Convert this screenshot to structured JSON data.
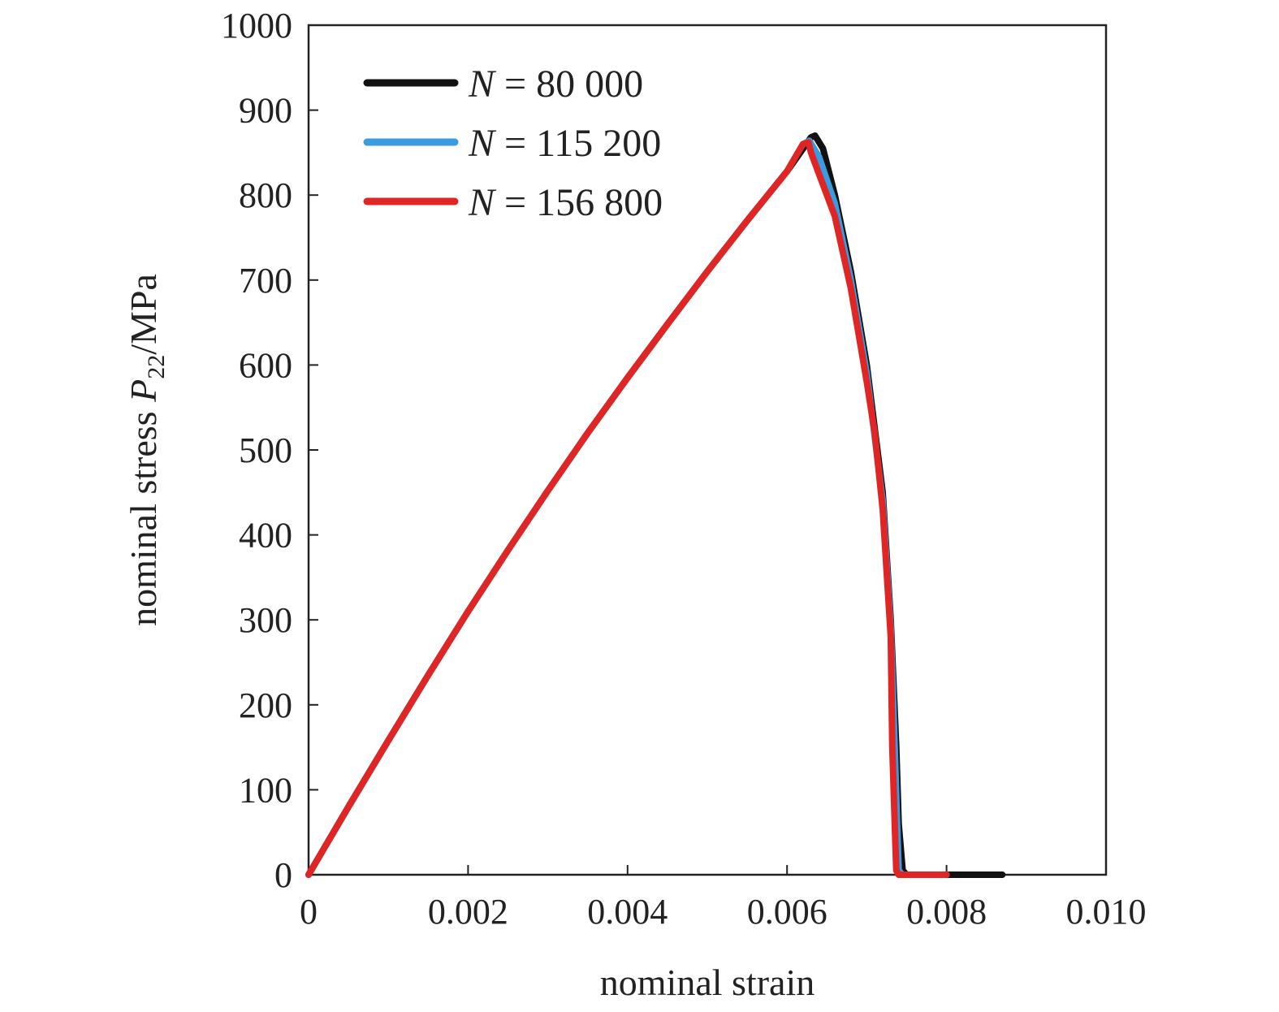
{
  "chart_data": {
    "type": "line",
    "xlabel": "nominal strain",
    "ylabel": {
      "prefix": "nominal stress ",
      "symbol": "P",
      "subscript": "22",
      "suffix": "/MPa"
    },
    "xlim": [
      0,
      0.01
    ],
    "ylim": [
      0,
      1000
    ],
    "x_ticks": [
      "0",
      "0.002",
      "0.004",
      "0.006",
      "0.008",
      "0.010"
    ],
    "x_tick_values": [
      0,
      0.002,
      0.004,
      0.006,
      0.008,
      0.01
    ],
    "y_ticks": [
      "0",
      "100",
      "200",
      "300",
      "400",
      "500",
      "600",
      "700",
      "800",
      "900",
      "1000"
    ],
    "y_tick_values": [
      0,
      100,
      200,
      300,
      400,
      500,
      600,
      700,
      800,
      900,
      1000
    ],
    "grid": false,
    "legend_position": "top-left",
    "series": [
      {
        "name": "N = 80 000",
        "legend_symbol": "N",
        "legend_value": "= 80 000",
        "color": "#111111",
        "points": [
          [
            0,
            0
          ],
          [
            0.0005,
            80
          ],
          [
            0.001,
            158
          ],
          [
            0.0015,
            235
          ],
          [
            0.002,
            310
          ],
          [
            0.0025,
            382
          ],
          [
            0.003,
            452
          ],
          [
            0.0035,
            520
          ],
          [
            0.004,
            585
          ],
          [
            0.0045,
            648
          ],
          [
            0.005,
            710
          ],
          [
            0.0055,
            770
          ],
          [
            0.006,
            828
          ],
          [
            0.0063,
            868
          ],
          [
            0.00635,
            870
          ],
          [
            0.00645,
            855
          ],
          [
            0.0066,
            800
          ],
          [
            0.0068,
            710
          ],
          [
            0.007,
            600
          ],
          [
            0.0072,
            450
          ],
          [
            0.0073,
            300
          ],
          [
            0.00737,
            150
          ],
          [
            0.0074,
            60
          ],
          [
            0.00745,
            5
          ],
          [
            0.0075,
            0
          ],
          [
            0.008,
            0
          ],
          [
            0.0087,
            0
          ]
        ]
      },
      {
        "name": "N = 115 200",
        "legend_symbol": "N",
        "legend_value": "= 115 200",
        "color": "#3b9be0",
        "points": [
          [
            0,
            0
          ],
          [
            0.0005,
            80
          ],
          [
            0.001,
            158
          ],
          [
            0.0015,
            235
          ],
          [
            0.002,
            310
          ],
          [
            0.0025,
            382
          ],
          [
            0.003,
            452
          ],
          [
            0.0035,
            520
          ],
          [
            0.004,
            585
          ],
          [
            0.0045,
            648
          ],
          [
            0.005,
            710
          ],
          [
            0.0055,
            770
          ],
          [
            0.006,
            828
          ],
          [
            0.0062,
            860
          ],
          [
            0.00628,
            864
          ],
          [
            0.0064,
            845
          ],
          [
            0.0066,
            790
          ],
          [
            0.0068,
            700
          ],
          [
            0.007,
            590
          ],
          [
            0.0072,
            440
          ],
          [
            0.0073,
            290
          ],
          [
            0.00735,
            150
          ],
          [
            0.00738,
            60
          ],
          [
            0.0074,
            5
          ],
          [
            0.00745,
            0
          ],
          [
            0.008,
            0
          ]
        ]
      },
      {
        "name": "N = 156 800",
        "legend_symbol": "N",
        "legend_value": "= 156 800",
        "color": "#e02525",
        "points": [
          [
            0,
            0
          ],
          [
            0.0005,
            80
          ],
          [
            0.001,
            158
          ],
          [
            0.0015,
            235
          ],
          [
            0.002,
            310
          ],
          [
            0.0025,
            382
          ],
          [
            0.003,
            452
          ],
          [
            0.0035,
            520
          ],
          [
            0.004,
            585
          ],
          [
            0.0045,
            648
          ],
          [
            0.005,
            710
          ],
          [
            0.0055,
            770
          ],
          [
            0.006,
            828
          ],
          [
            0.0062,
            860
          ],
          [
            0.00627,
            862
          ],
          [
            0.0063,
            850
          ],
          [
            0.0064,
            825
          ],
          [
            0.0066,
            775
          ],
          [
            0.0068,
            690
          ],
          [
            0.007,
            580
          ],
          [
            0.0071,
            520
          ],
          [
            0.0072,
            430
          ],
          [
            0.0073,
            280
          ],
          [
            0.00732,
            150
          ],
          [
            0.00735,
            60
          ],
          [
            0.00737,
            5
          ],
          [
            0.0074,
            0
          ],
          [
            0.008,
            0
          ]
        ]
      }
    ]
  }
}
